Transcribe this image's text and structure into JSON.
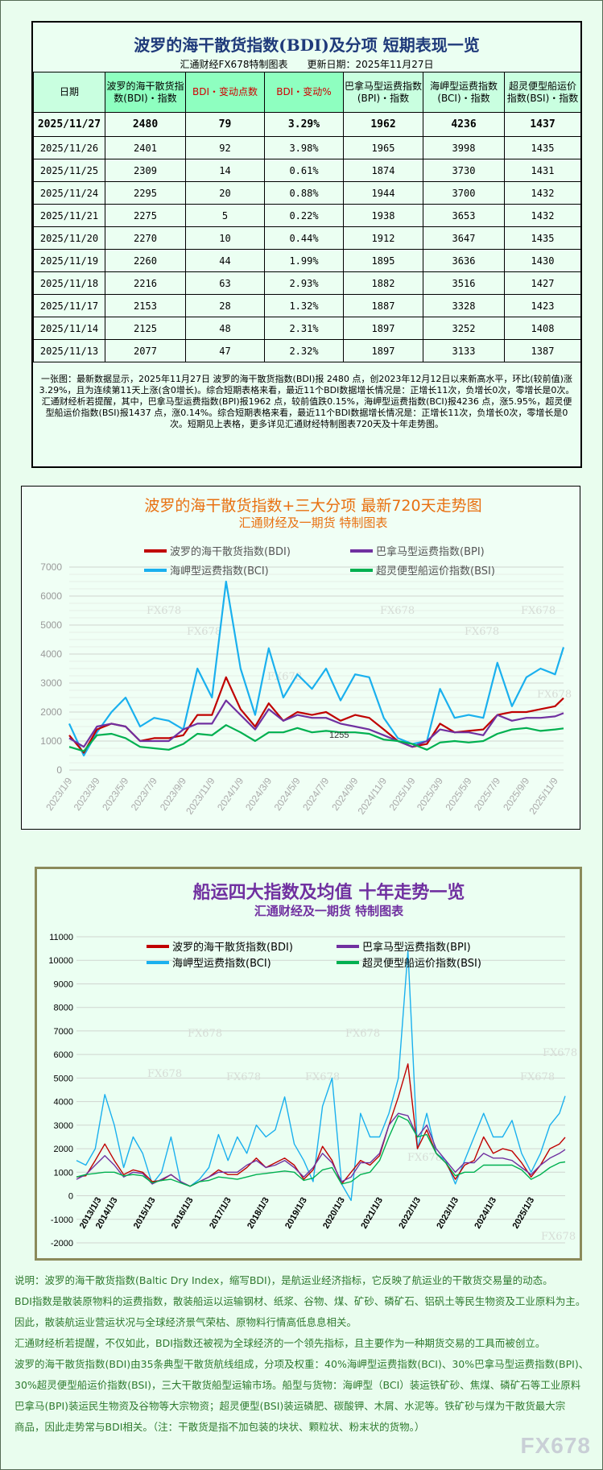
{
  "table_panel": {
    "title": "波罗的海干散货指数(BDI)及分项 短期表现一览",
    "source": "汇通财经FX678特制图表",
    "updated": "更新日期：2025年11月27日",
    "headers": [
      "日期",
      "波罗的海干散货指数(BDI)・指数",
      "BDI・变动点数",
      "BDI・变动%",
      "巴拿马型运费指数(BPI)・指数",
      "海岬型运费指数(BCI)・指数",
      "超灵便型船运价指数(BSI)・指数"
    ],
    "rows": [
      [
        "2025/11/27",
        "2480",
        "79",
        "3.29%",
        "1962",
        "4236",
        "1437"
      ],
      [
        "2025/11/26",
        "2401",
        "92",
        "3.98%",
        "1965",
        "3998",
        "1435"
      ],
      [
        "2025/11/25",
        "2309",
        "14",
        "0.61%",
        "1874",
        "3730",
        "1431"
      ],
      [
        "2025/11/24",
        "2295",
        "20",
        "0.88%",
        "1944",
        "3700",
        "1432"
      ],
      [
        "2025/11/21",
        "2275",
        "5",
        "0.22%",
        "1938",
        "3653",
        "1432"
      ],
      [
        "2025/11/20",
        "2270",
        "10",
        "0.44%",
        "1912",
        "3647",
        "1435"
      ],
      [
        "2025/11/19",
        "2260",
        "44",
        "1.99%",
        "1895",
        "3636",
        "1430"
      ],
      [
        "2025/11/18",
        "2216",
        "63",
        "2.93%",
        "1882",
        "3516",
        "1427"
      ],
      [
        "2025/11/17",
        "2153",
        "28",
        "1.32%",
        "1887",
        "3328",
        "1423"
      ],
      [
        "2025/11/14",
        "2125",
        "48",
        "2.31%",
        "1897",
        "3252",
        "1408"
      ],
      [
        "2025/11/13",
        "2077",
        "47",
        "2.32%",
        "1897",
        "3133",
        "1387"
      ]
    ],
    "summary": "一张图：最新数据显示，2025年11月27日 波罗的海干散货指数(BDI)报 2480 点，创2023年12月12日以来新高水平，环比(较前值)涨3.29%，且为连续第11天上涨(含0增长)。综合短期表格来看，最近11个BDI数据增长情况是：正增长11次，负增长0次，零增长是0次。汇通财经析若提醒，其中，巴拿马型运费指数(BPI)报1962 点，较前值跌0.15%，海岬型运费指数(BCI)报4236 点，涨5.95%，超灵便型船运价指数(BSI)报1437 点，涨0.14%。综合短期表格来看，最近11个BDI数据增长情况是：正增长11次，负增长0次，零增长是0次。短期见上表格，更多详见汇通财经特制图表720天及十年走势图。"
  },
  "chart_data": [
    {
      "type": "line",
      "title": "波罗的海干散货指数+三大分项  最新720天走势图",
      "subtitle": "汇通财经及一期货  特制图表",
      "ylim": [
        0,
        7000
      ],
      "yticks": [
        "0",
        "1000",
        "2000",
        "3000",
        "4000",
        "5000",
        "6000",
        "7000"
      ],
      "xticks": [
        "2023/1/9",
        "2023/3/9",
        "2023/5/9",
        "2023/7/9",
        "2023/9/9",
        "2023/11/9",
        "2024/1/9",
        "2024/3/9",
        "2024/5/9",
        "2024/7/9",
        "2024/9/9",
        "2024/11/9",
        "2025/1/9",
        "2025/3/9",
        "2025/5/9",
        "2025/7/9",
        "2025/9/9",
        "2025/11/9"
      ],
      "xrange": [
        "2023/1/9",
        "2025/11/27"
      ],
      "grid": true,
      "legend": "top",
      "annotation": {
        "label": "1255",
        "x": "2024/8/9",
        "y": 1255
      },
      "watermark": "FX678",
      "x": [
        "2023/1/9",
        "2023/2/9",
        "2023/3/9",
        "2023/4/9",
        "2023/5/9",
        "2023/6/9",
        "2023/7/9",
        "2023/8/9",
        "2023/9/9",
        "2023/10/9",
        "2023/11/9",
        "2023/12/9",
        "2024/1/9",
        "2024/2/9",
        "2024/3/9",
        "2024/4/9",
        "2024/5/9",
        "2024/6/9",
        "2024/7/9",
        "2024/8/9",
        "2024/9/9",
        "2024/10/9",
        "2024/11/9",
        "2024/12/9",
        "2025/1/9",
        "2025/2/9",
        "2025/3/9",
        "2025/4/9",
        "2025/5/9",
        "2025/6/9",
        "2025/7/9",
        "2025/8/9",
        "2025/9/9",
        "2025/10/9",
        "2025/11/9",
        "2025/11/27"
      ],
      "series": [
        {
          "name": "海岬型运费指数(BCI)",
          "color": "#1ab0ee",
          "values": [
            1600,
            500,
            1300,
            2000,
            2500,
            1500,
            1800,
            1700,
            1400,
            3500,
            2500,
            6500,
            3500,
            1900,
            4200,
            2500,
            3300,
            2800,
            3500,
            2400,
            3300,
            3200,
            1800,
            1100,
            900,
            1000,
            2800,
            1800,
            1900,
            1800,
            3700,
            2200,
            3200,
            3500,
            3300,
            4236
          ]
        },
        {
          "name": "波罗的海干散货指数(BDI)",
          "color": "#c00000",
          "values": [
            1200,
            600,
            1400,
            1600,
            1500,
            1000,
            1100,
            1100,
            1200,
            1900,
            1900,
            3200,
            2100,
            1500,
            2300,
            1700,
            2000,
            1900,
            2000,
            1700,
            1900,
            1800,
            1400,
            1000,
            800,
            900,
            1600,
            1300,
            1350,
            1400,
            1900,
            2000,
            2000,
            2100,
            2200,
            2480
          ]
        },
        {
          "name": "巴拿马型运费指数(BPI)",
          "color": "#7030a0",
          "values": [
            1100,
            800,
            1500,
            1600,
            1500,
            1000,
            1000,
            1000,
            1400,
            1600,
            1600,
            2400,
            1900,
            1400,
            2100,
            1700,
            1900,
            1800,
            1800,
            1600,
            1500,
            1400,
            1200,
            1000,
            800,
            1000,
            1400,
            1300,
            1300,
            1200,
            1900,
            1700,
            1800,
            1800,
            1850,
            1962
          ]
        },
        {
          "name": "超灵便型船运价指数(BSI)",
          "color": "#00b050",
          "values": [
            800,
            650,
            1200,
            1250,
            1100,
            800,
            750,
            700,
            900,
            1250,
            1200,
            1550,
            1300,
            1000,
            1300,
            1300,
            1450,
            1300,
            1350,
            1300,
            1300,
            1250,
            1050,
            1000,
            900,
            700,
            950,
            1000,
            950,
            1000,
            1250,
            1400,
            1450,
            1350,
            1400,
            1437
          ]
        }
      ]
    },
    {
      "type": "line",
      "title": "船运四大指数及均值 十年走势一览",
      "subtitle": "汇通财经及一期货 特制图表",
      "ylim": [
        -2000,
        11000
      ],
      "yticks": [
        "-2000",
        "-1000",
        "0",
        "1000",
        "2000",
        "3000",
        "4000",
        "5000",
        "6000",
        "7000",
        "8000",
        "9000",
        "10000",
        "11000"
      ],
      "xticks": [
        "2013/1/3",
        "2014/1/3",
        "2015/1/3",
        "2016/1/3",
        "2017/1/3",
        "2018/1/3",
        "2019/1/3",
        "2020/1/3",
        "2021/1/3",
        "2022/1/3",
        "2023/1/3",
        "2024/1/3",
        "2025/1/3"
      ],
      "xrange": [
        "2013/1/3",
        "2025/11/27"
      ],
      "grid": true,
      "legend": "top",
      "watermark": "FX678",
      "x": [
        "2013/1/3",
        "2013/4/3",
        "2013/7/3",
        "2013/10/3",
        "2014/1/3",
        "2014/4/3",
        "2014/7/3",
        "2014/10/3",
        "2015/1/3",
        "2015/4/3",
        "2015/7/3",
        "2015/10/3",
        "2016/1/3",
        "2016/4/3",
        "2016/7/3",
        "2016/10/3",
        "2017/1/3",
        "2017/4/3",
        "2017/7/3",
        "2017/10/3",
        "2018/1/3",
        "2018/4/3",
        "2018/7/3",
        "2018/10/3",
        "2019/1/3",
        "2019/4/3",
        "2019/7/3",
        "2019/10/3",
        "2020/1/3",
        "2020/4/3",
        "2020/7/3",
        "2020/10/3",
        "2021/1/3",
        "2021/4/3",
        "2021/7/3",
        "2021/10/3",
        "2022/1/3",
        "2022/4/3",
        "2022/7/3",
        "2022/10/3",
        "2023/1/3",
        "2023/4/3",
        "2023/7/3",
        "2023/10/3",
        "2024/1/3",
        "2024/4/3",
        "2024/7/3",
        "2024/10/3",
        "2025/1/3",
        "2025/4/3",
        "2025/7/3",
        "2025/10/3",
        "2025/11/27"
      ],
      "series": [
        {
          "name": "海岬型运费指数(BCI)",
          "color": "#1ab0ee",
          "values": [
            1500,
            1300,
            2000,
            4300,
            3000,
            1200,
            2500,
            1800,
            500,
            1000,
            2500,
            600,
            400,
            700,
            1200,
            2600,
            1500,
            2500,
            1800,
            3000,
            2500,
            2800,
            4200,
            2200,
            1500,
            600,
            3800,
            5000,
            500,
            -200,
            3500,
            2500,
            2500,
            3500,
            5000,
            10400,
            2000,
            3500,
            1800,
            1500,
            500,
            1500,
            2500,
            3500,
            2500,
            2500,
            3200,
            1800,
            1000,
            1800,
            3000,
            3500,
            4236
          ]
        },
        {
          "name": "波罗的海干散货指数(BDI)",
          "color": "#c00000",
          "values": [
            800,
            850,
            1500,
            2200,
            1500,
            900,
            1100,
            1000,
            600,
            650,
            900,
            600,
            400,
            600,
            800,
            1100,
            900,
            900,
            1200,
            1600,
            1200,
            1400,
            1600,
            1300,
            700,
            1100,
            2100,
            1500,
            500,
            1000,
            1500,
            1300,
            1700,
            3000,
            4200,
            5600,
            2000,
            2800,
            1800,
            1400,
            700,
            1300,
            1500,
            2500,
            1800,
            2000,
            1900,
            1400,
            800,
            1300,
            2000,
            2200,
            2480
          ]
        },
        {
          "name": "巴拿马型运费指数(BPI)",
          "color": "#7030a0",
          "values": [
            700,
            900,
            1300,
            1700,
            1300,
            800,
            1000,
            950,
            500,
            700,
            900,
            600,
            400,
            600,
            800,
            1000,
            1000,
            1000,
            1300,
            1500,
            1200,
            1300,
            1500,
            1200,
            800,
            1200,
            1800,
            1400,
            600,
            800,
            1400,
            1400,
            1800,
            3000,
            3500,
            3400,
            2500,
            3000,
            2000,
            1500,
            1000,
            1400,
            1400,
            1800,
            1600,
            1600,
            1500,
            1200,
            900,
            1300,
            1600,
            1800,
            1962
          ]
        },
        {
          "name": "超灵便型船运价指数(BSI)",
          "color": "#00b050",
          "values": [
            800,
            900,
            950,
            1000,
            1000,
            850,
            900,
            850,
            550,
            650,
            700,
            550,
            400,
            600,
            650,
            800,
            750,
            700,
            800,
            900,
            950,
            1000,
            1050,
            1000,
            650,
            750,
            1100,
            1200,
            500,
            600,
            900,
            1000,
            1500,
            2500,
            3400,
            3200,
            2500,
            2600,
            1800,
            1400,
            850,
            1000,
            1000,
            1300,
            1300,
            1300,
            1300,
            1100,
            700,
            900,
            1200,
            1400,
            1437
          ]
        }
      ]
    }
  ],
  "notes": [
    "说明：波罗的海干散货指数(Baltic Dry Index，缩写BDI)，是航运业经济指标，它反映了航运业的干散货交易量的动态。",
    "BDI指数是散装原物料的运费指数，散装船运以运输钢材、纸浆、谷物、煤、矿砂、磷矿石、铝矾土等民生物资及工业原料为主。",
    "因此，散装航运业营运状况与全球经济景气荣枯、原物料行情高低息息相关。",
    "汇通财经析若提醒，不仅如此，BDI指数还被视为全球经济的一个领先指标，且主要作为一种期货交易的工具而被创立。",
    "波罗的海干散货指数(BDI)由35条典型干散货航线组成，分项及权重：40%海岬型运费指数(BCI)、30%巴拿马型运费指数(BPI)、",
    "30%超灵便型船运价指数(BSI)，三大干散货船型运输市场。船型与货物：海岬型（BCI）装运铁矿砂、焦煤、磷矿石等工业原料",
    "巴拿马(BPI)装运民生物资及谷物等大宗物资；超灵便型(BSI)装运磷肥、碳酸钾、木屑、水泥等。铁矿砂与煤为干散货最大宗",
    "商品，因此走势常与BDI相关。（注：干散货是指不加包装的块状、颗粒状、粉末状的货物。）"
  ],
  "watermark": "FX678"
}
